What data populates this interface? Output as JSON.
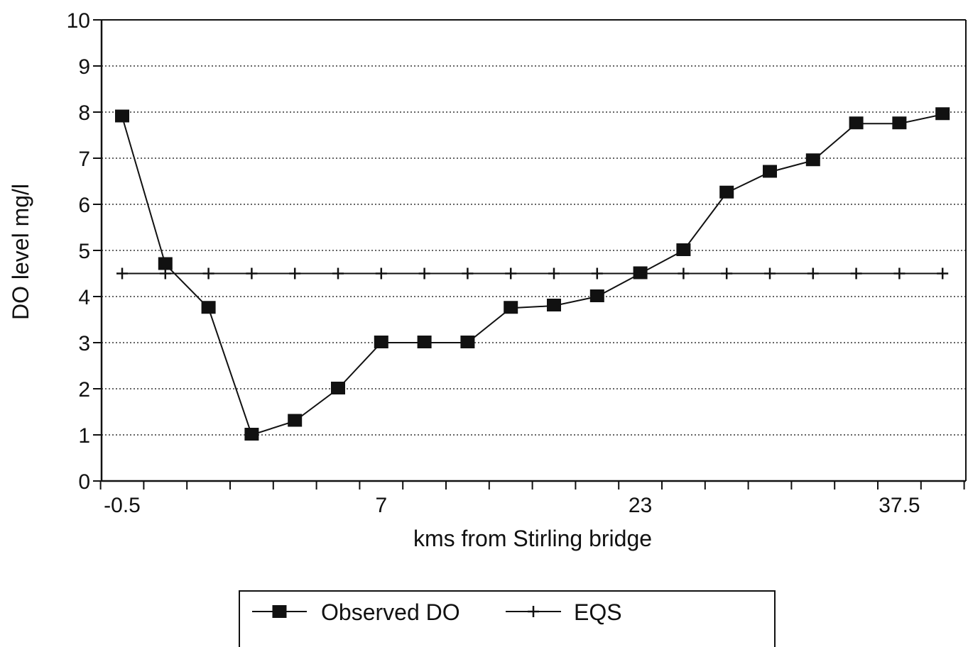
{
  "chart_data": {
    "type": "line",
    "title": "",
    "xlabel": "kms from Stirling bridge",
    "ylabel": "DO level mg/l",
    "ylim": [
      0,
      10
    ],
    "yticks": [
      "0",
      "1",
      "2",
      "3",
      "4",
      "5",
      "6",
      "7",
      "8",
      "9",
      "10"
    ],
    "x_tick_labels": [
      "-0.5",
      "",
      "",
      "",
      "",
      "",
      "7",
      "",
      "",
      "",
      "",
      "",
      "23",
      "",
      "",
      "",
      "",
      "",
      "37.5",
      ""
    ],
    "grid": "horizontal dotted",
    "legend_position": "bottom-center",
    "series": [
      {
        "name": "Observed DO",
        "marker": "square",
        "values": [
          7.9,
          4.7,
          3.75,
          1.0,
          1.3,
          2.0,
          3.0,
          3.0,
          3.0,
          3.75,
          3.8,
          4.0,
          4.5,
          5.0,
          6.25,
          6.7,
          6.95,
          7.75,
          7.75,
          7.95
        ]
      },
      {
        "name": "EQS",
        "marker": "plus",
        "values": [
          4.5,
          4.5,
          4.5,
          4.5,
          4.5,
          4.5,
          4.5,
          4.5,
          4.5,
          4.5,
          4.5,
          4.5,
          4.5,
          4.5,
          4.5,
          4.5,
          4.5,
          4.5,
          4.5,
          4.5
        ]
      }
    ]
  },
  "colors": {
    "line": "#111111",
    "grid": "#333333",
    "background": "#ffffff"
  }
}
